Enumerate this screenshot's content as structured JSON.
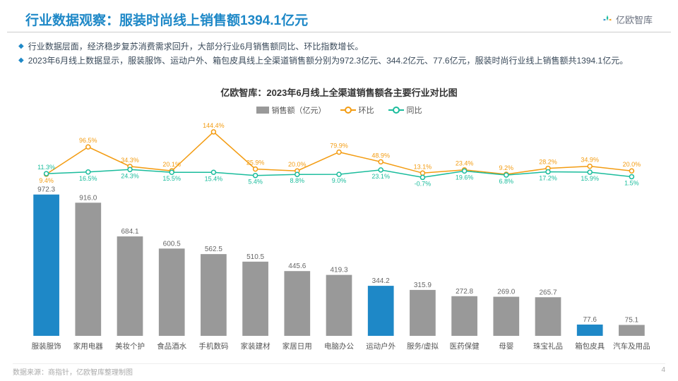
{
  "header": {
    "title": "行业数据观察：服装时尚线上销售额1394.1亿元",
    "logo_text": "亿欧智库"
  },
  "bullets": [
    "行业数据层面，经济稳步复苏消费需求回升，大部分行业6月销售额同比、环比指数增长。",
    "2023年6月线上数据显示，服装服饰、运动户外、箱包皮具线上全渠道销售额分别为972.3亿元、344.2亿元、77.6亿元，服装时尚行业线上销售额共1394.1亿元。"
  ],
  "chart": {
    "title": "亿欧智库：2023年6月线上全渠道销售额各主要行业对比图",
    "legend": {
      "bar": "销售额（亿元）",
      "mom": "环比",
      "yoy": "同比"
    },
    "categories": [
      "服装服饰",
      "家用电器",
      "美妆个护",
      "食品酒水",
      "手机数码",
      "家装建材",
      "家居日用",
      "电脑办公",
      "运动户外",
      "服务/虚拟",
      "医药保健",
      "母婴",
      "珠宝礼品",
      "箱包皮具",
      "汽车及用品"
    ],
    "values": [
      972.3,
      916.0,
      684.1,
      600.5,
      562.5,
      510.5,
      445.6,
      419.3,
      344.2,
      315.9,
      272.8,
      269.0,
      265.7,
      77.6,
      75.1
    ],
    "highlight": [
      true,
      false,
      false,
      false,
      false,
      false,
      false,
      false,
      true,
      false,
      false,
      false,
      false,
      true,
      false
    ],
    "mom": [
      9.4,
      96.5,
      34.3,
      20.1,
      144.4,
      25.9,
      20.0,
      79.9,
      48.9,
      13.1,
      23.4,
      9.2,
      28.2,
      34.9,
      20.0
    ],
    "yoy": [
      11.3,
      16.5,
      24.3,
      15.5,
      15.4,
      5.4,
      8.8,
      9.0,
      23.1,
      -0.7,
      19.6,
      6.8,
      17.2,
      15.9,
      1.5
    ],
    "colors": {
      "bar": "#999999",
      "bar_hl": "#1e88c7",
      "mom": "#f39c12",
      "yoy": "#1abc9c"
    },
    "y_max_bar": 1000,
    "line_range": [
      -20,
      160
    ]
  },
  "footer": {
    "source": "数据来源：商指针，亿欧智库整理制图",
    "page": "4"
  }
}
